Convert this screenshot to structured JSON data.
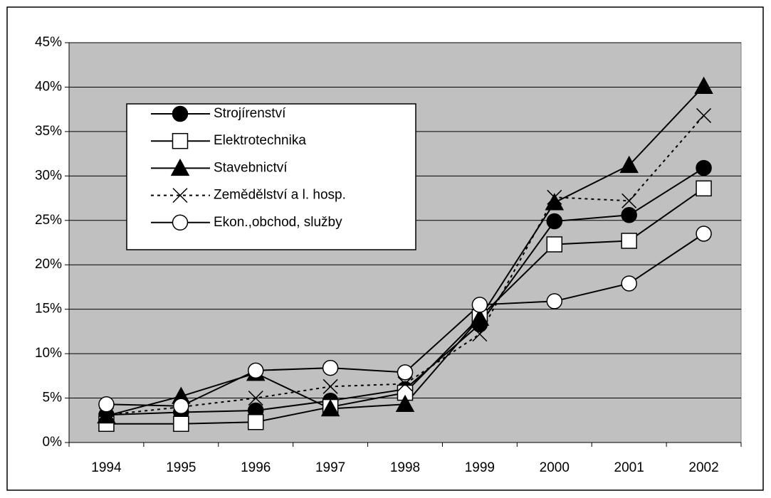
{
  "chart_data": {
    "type": "line",
    "categories": [
      "1994",
      "1995",
      "1996",
      "1997",
      "1998",
      "1999",
      "2000",
      "2001",
      "2002"
    ],
    "series": [
      {
        "name": "Strojírenství",
        "color": "#000000",
        "marker": "circle",
        "marker_fill": "#000000",
        "dash": "solid",
        "values": [
          3.1,
          3.4,
          3.6,
          4.7,
          6.0,
          13.3,
          24.9,
          25.6,
          30.9
        ]
      },
      {
        "name": "Elektrotechnika",
        "color": "#000000",
        "marker": "square",
        "marker_fill": "#ffffff",
        "dash": "solid",
        "values": [
          2.1,
          2.1,
          2.3,
          4.0,
          5.6,
          14.1,
          22.3,
          22.7,
          28.6
        ]
      },
      {
        "name": "Stavebnictví",
        "color": "#000000",
        "marker": "triangle",
        "marker_fill": "#000000",
        "dash": "solid",
        "values": [
          3.0,
          5.2,
          7.8,
          3.8,
          4.3,
          14.0,
          27.0,
          31.2,
          40.1
        ]
      },
      {
        "name": "Zemědělství a l. hosp.",
        "color": "#000000",
        "marker": "x",
        "marker_fill": "none",
        "dash": "dotted",
        "values": [
          3.1,
          4.0,
          5.0,
          6.3,
          6.6,
          12.2,
          27.6,
          27.2,
          36.8
        ]
      },
      {
        "name": "Ekon.,obchod, služby",
        "color": "#000000",
        "marker": "circle",
        "marker_fill": "#ffffff",
        "dash": "solid",
        "values": [
          4.3,
          4.1,
          8.1,
          8.4,
          7.9,
          15.5,
          15.9,
          17.9,
          23.5
        ]
      }
    ],
    "ylim": [
      0,
      45
    ],
    "yticks": [
      {
        "value": 0,
        "label": "0%"
      },
      {
        "value": 5,
        "label": "5%"
      },
      {
        "value": 10,
        "label": "10%"
      },
      {
        "value": 15,
        "label": "15%"
      },
      {
        "value": 20,
        "label": "20%"
      },
      {
        "value": 25,
        "label": "25%"
      },
      {
        "value": 30,
        "label": "30%"
      },
      {
        "value": 35,
        "label": "35%"
      },
      {
        "value": 40,
        "label": "40%"
      },
      {
        "value": 45,
        "label": "45%"
      }
    ],
    "grid": true,
    "plot_background": "#c0c0c0",
    "legend": "upper left"
  }
}
